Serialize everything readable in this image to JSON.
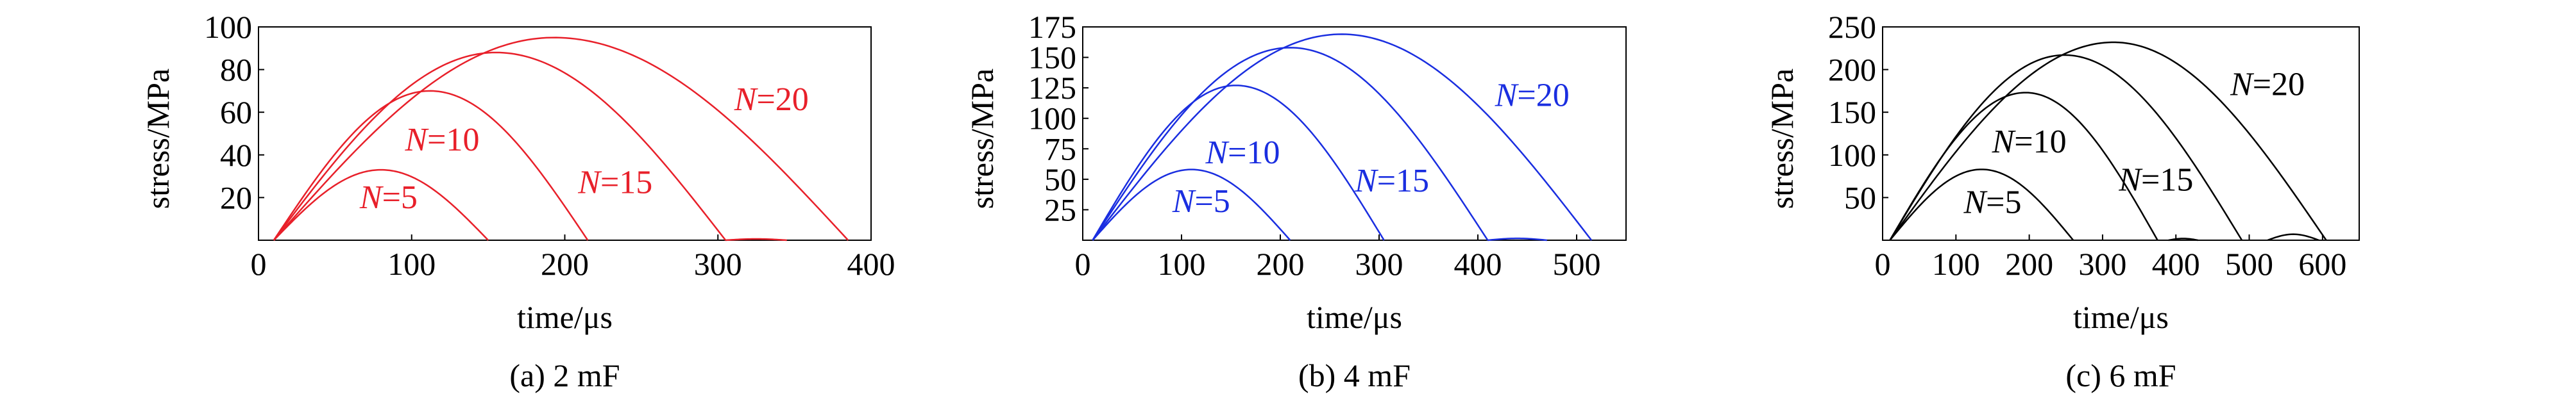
{
  "figure": {
    "captions": [
      "(a) 2 mF",
      "(b) 4 mF",
      "(c) 6 mF"
    ]
  },
  "chart_data": [
    {
      "type": "line",
      "caption": "(a) 2 mF",
      "color": "#e8202a",
      "xlabel": "time/μs",
      "ylabel": "stress/MPa",
      "xlim": [
        0,
        400
      ],
      "ylim": [
        0,
        100
      ],
      "xticks": [
        0,
        100,
        200,
        300,
        400
      ],
      "yticks": [
        20,
        40,
        60,
        80,
        100
      ],
      "grid": false,
      "series": [
        {
          "name": "N=5",
          "label_var": "N",
          "label_val": "=5",
          "start": 10,
          "peak_x": 80,
          "peak_y": 33,
          "end": 150,
          "label_x": 85,
          "label_y": 15
        },
        {
          "name": "N=10",
          "label_var": "N",
          "label_val": "=10",
          "start": 10,
          "peak_x": 112,
          "peak_y": 70,
          "end": 215,
          "label_x": 120,
          "label_y": 42
        },
        {
          "name": "N=15",
          "label_var": "N",
          "label_val": "=15",
          "start": 10,
          "peak_x": 155,
          "peak_y": 88,
          "end": 305,
          "label_x": 233,
          "label_y": 22
        },
        {
          "name": "N=20",
          "label_var": "N",
          "label_val": "=20",
          "start": 10,
          "peak_x": 193,
          "peak_y": 95,
          "end": 385,
          "label_x": 335,
          "label_y": 61
        }
      ],
      "tail_bumps": [
        {
          "x1": 305,
          "x2": 345,
          "h": 0.6
        }
      ]
    },
    {
      "type": "line",
      "caption": "(b) 4 mF",
      "color": "#1a2ee0",
      "xlabel": "time/μs",
      "ylabel": "stress/MPa",
      "xlim": [
        0,
        550
      ],
      "ylim": [
        0,
        175
      ],
      "xticks": [
        0,
        100,
        200,
        300,
        400,
        500
      ],
      "yticks": [
        25,
        50,
        75,
        100,
        125,
        150,
        175
      ],
      "grid": false,
      "series": [
        {
          "name": "N=5",
          "label_var": "N",
          "label_val": "=5",
          "start": 10,
          "peak_x": 110,
          "peak_y": 58,
          "end": 210,
          "label_x": 120,
          "label_y": 23
        },
        {
          "name": "N=10",
          "label_var": "N",
          "label_val": "=10",
          "start": 10,
          "peak_x": 155,
          "peak_y": 127,
          "end": 305,
          "label_x": 162,
          "label_y": 63
        },
        {
          "name": "N=15",
          "label_var": "N",
          "label_val": "=15",
          "start": 10,
          "peak_x": 210,
          "peak_y": 158,
          "end": 410,
          "label_x": 313,
          "label_y": 40
        },
        {
          "name": "N=20",
          "label_var": "N",
          "label_val": "=20",
          "start": 10,
          "peak_x": 262,
          "peak_y": 169,
          "end": 515,
          "label_x": 455,
          "label_y": 110
        }
      ],
      "tail_bumps": [
        {
          "x1": 410,
          "x2": 470,
          "h": 1.5
        }
      ]
    },
    {
      "type": "line",
      "caption": "(c) 6 mF",
      "color": "#000000",
      "xlabel": "time/μs",
      "ylabel": "stress/MPa",
      "xlim": [
        0,
        650
      ],
      "ylim": [
        0,
        250
      ],
      "xticks": [
        0,
        100,
        200,
        300,
        400,
        500,
        600
      ],
      "yticks": [
        50,
        100,
        150,
        200,
        250
      ],
      "grid": false,
      "series": [
        {
          "name": "N=5",
          "label_var": "N",
          "label_val": "=5",
          "start": 10,
          "peak_x": 135,
          "peak_y": 83,
          "end": 260,
          "label_x": 150,
          "label_y": 32
        },
        {
          "name": "N=10",
          "label_var": "N",
          "label_val": "=10",
          "start": 10,
          "peak_x": 195,
          "peak_y": 173,
          "end": 375,
          "label_x": 200,
          "label_y": 103
        },
        {
          "name": "N=15",
          "label_var": "N",
          "label_val": "=15",
          "start": 10,
          "peak_x": 248,
          "peak_y": 217,
          "end": 490,
          "label_x": 373,
          "label_y": 58
        },
        {
          "name": "N=20",
          "label_var": "N",
          "label_val": "=20",
          "start": 10,
          "peak_x": 315,
          "peak_y": 232,
          "end": 605,
          "label_x": 525,
          "label_y": 170
        }
      ],
      "tail_bumps": [
        {
          "x1": 525,
          "x2": 595,
          "h": 7
        },
        {
          "x1": 390,
          "x2": 430,
          "h": 2
        }
      ]
    }
  ]
}
